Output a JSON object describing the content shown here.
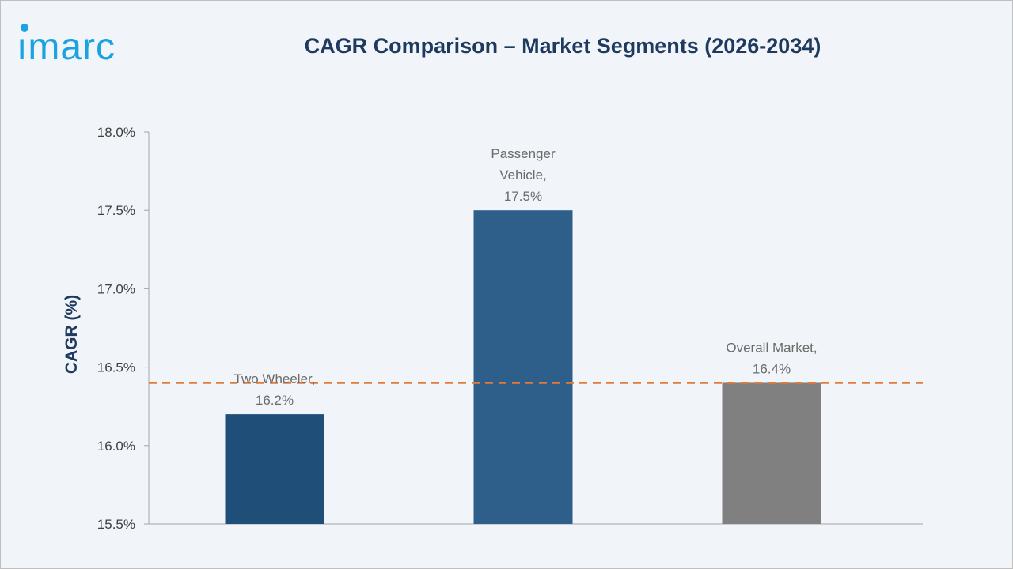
{
  "brand": {
    "logo_text": "imarc",
    "logo_color": "#1aa3e0"
  },
  "chart_data": {
    "type": "bar",
    "title": "CAGR Comparison – Market Segments (2026-2034)",
    "xlabel": "",
    "ylabel": "CAGR (%)",
    "categories": [
      "Two Wheeler",
      "Passenger Vehicle",
      "Overall Market"
    ],
    "values": [
      16.2,
      17.5,
      16.4
    ],
    "data_labels": [
      [
        "Two Wheeler,",
        "16.2%"
      ],
      [
        "Passenger",
        "Vehicle,",
        "17.5%"
      ],
      [
        "Overall Market,",
        "16.4%"
      ]
    ],
    "bar_colors": [
      "#1f4e79",
      "#2e5f8a",
      "#808080"
    ],
    "ylim": [
      15.5,
      18.0
    ],
    "yticks": [
      15.5,
      16.0,
      16.5,
      17.0,
      17.5,
      18.0
    ],
    "ytick_labels": [
      "15.5%",
      "16.0%",
      "16.5%",
      "17.0%",
      "17.5%",
      "18.0%"
    ],
    "reference_line": {
      "value": 16.4,
      "style": "dashed",
      "color": "#e07b39"
    },
    "grid": false,
    "legend": "none"
  }
}
